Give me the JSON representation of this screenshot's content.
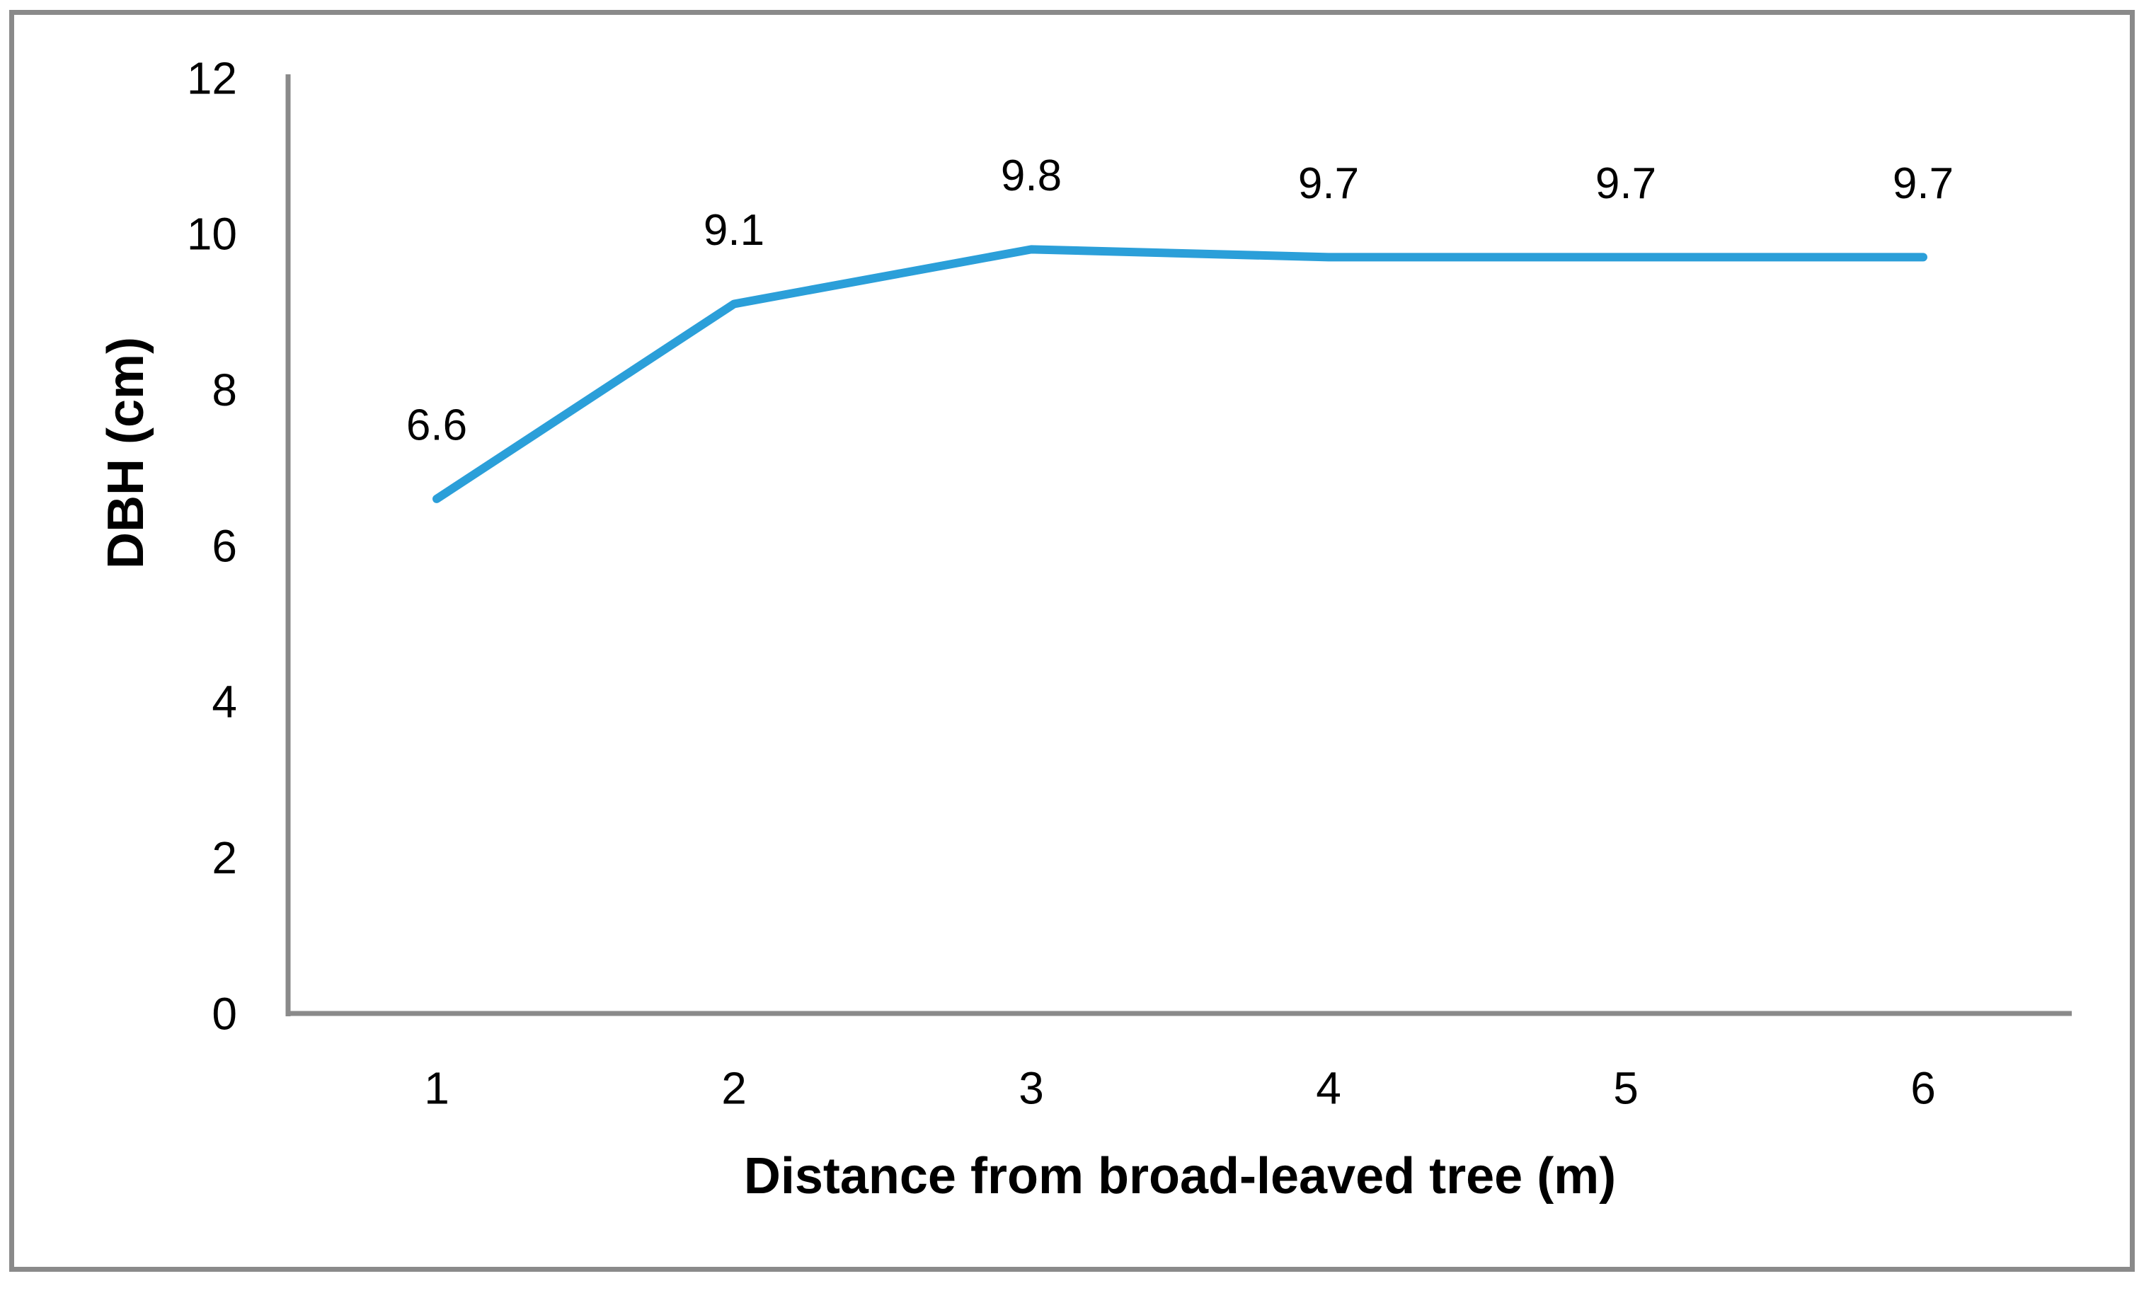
{
  "chart_data": {
    "type": "line",
    "categories": [
      1,
      2,
      3,
      4,
      5,
      6
    ],
    "values": [
      6.6,
      9.1,
      9.8,
      9.7,
      9.7,
      9.7
    ],
    "data_labels": [
      "6.6",
      "9.1",
      "9.8",
      "9.7",
      "9.7",
      "9.7"
    ],
    "title": "",
    "xlabel": "Distance from broad-leaved tree (m)",
    "ylabel": "DBH (cm)",
    "ylim": [
      0,
      12
    ],
    "yticks": [
      0,
      2,
      4,
      6,
      8,
      10,
      12
    ],
    "grid": false,
    "legend_position": "none",
    "line_color": "#2B9FD9",
    "axis_color": "#8A8A8A",
    "frame_color": "#8A8A8A",
    "label_color": "#000000"
  }
}
